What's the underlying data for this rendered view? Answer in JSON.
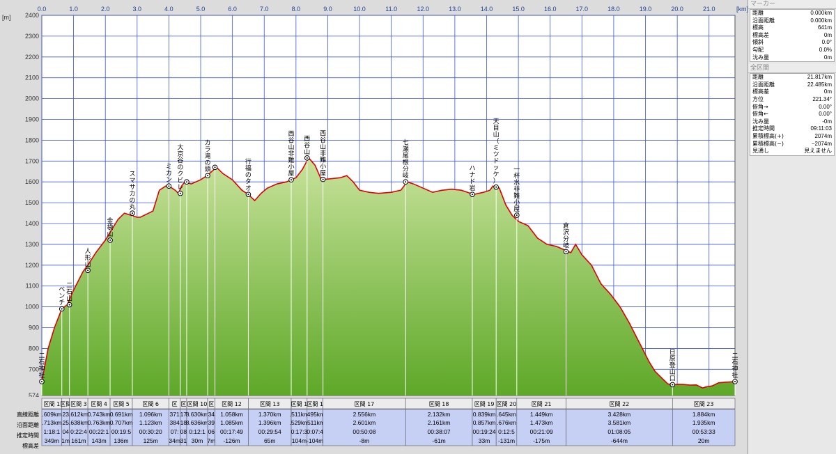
{
  "chart_data": {
    "type": "area",
    "x_unit": "[km]",
    "y_unit": "[m]",
    "xlim": [
      0,
      21.817
    ],
    "ylim": [
      574,
      2400
    ],
    "x_ticks": [
      "0.0",
      "1.0",
      "2.0",
      "3.0",
      "4.0",
      "5.0",
      "6.0",
      "7.0",
      "8.0",
      "9.0",
      "10.0",
      "11.0",
      "12.0",
      "13.0",
      "14.0",
      "15.0",
      "16.0",
      "17.0",
      "18.0",
      "19.0",
      "20.0",
      "21.0"
    ],
    "y_ticks": [
      2400,
      2300,
      2200,
      2100,
      2000,
      1900,
      1800,
      1700,
      1600,
      1500,
      1400,
      1300,
      1200,
      1100,
      1000,
      900,
      800,
      700
    ],
    "y_min_label": "574",
    "profile": {
      "x": [
        0,
        0.2,
        0.4,
        0.63,
        0.8,
        1.0,
        1.3,
        1.45,
        1.7,
        2.0,
        2.2,
        2.4,
        2.6,
        2.8,
        3.0,
        3.1,
        3.5,
        3.7,
        3.9,
        4.0,
        4.2,
        4.3,
        4.4,
        4.5,
        4.7,
        5.0,
        5.2,
        5.5,
        5.7,
        6.0,
        6.3,
        6.5,
        6.7,
        6.9,
        7.1,
        7.4,
        7.7,
        7.85,
        8.0,
        8.2,
        8.4,
        8.6,
        8.8,
        8.9,
        9.1,
        9.4,
        9.6,
        9.8,
        10.0,
        10.3,
        10.6,
        11.0,
        11.3,
        11.5,
        11.7,
        12.0,
        12.3,
        12.6,
        12.9,
        13.2,
        13.5,
        13.6,
        13.9,
        14.1,
        14.2,
        14.4,
        14.5,
        14.6,
        14.8,
        15.0,
        15.3,
        15.6,
        15.9,
        16.2,
        16.5,
        16.65,
        16.8,
        17.0,
        17.3,
        17.6,
        17.9,
        18.2,
        18.5,
        18.7,
        18.9,
        19.1,
        19.3,
        19.5,
        19.7,
        19.85,
        20.0,
        20.2,
        20.4,
        20.6,
        20.8,
        20.9,
        21.1,
        21.3,
        21.5,
        21.817
      ],
      "y": [
        641,
        800,
        900,
        990,
        1010,
        1080,
        1170,
        1200,
        1260,
        1320,
        1370,
        1420,
        1450,
        1440,
        1430,
        1430,
        1460,
        1560,
        1580,
        1580,
        1560,
        1545,
        1580,
        1600,
        1590,
        1610,
        1630,
        1670,
        1640,
        1610,
        1560,
        1540,
        1510,
        1545,
        1570,
        1590,
        1600,
        1610,
        1620,
        1660,
        1715,
        1680,
        1610,
        1612,
        1615,
        1620,
        1630,
        1600,
        1560,
        1550,
        1545,
        1550,
        1560,
        1600,
        1590,
        1570,
        1550,
        1560,
        1565,
        1560,
        1545,
        1540,
        1550,
        1560,
        1580,
        1570,
        1530,
        1490,
        1440,
        1410,
        1390,
        1330,
        1300,
        1290,
        1270,
        1260,
        1300,
        1250,
        1200,
        1110,
        1060,
        1000,
        920,
        860,
        800,
        740,
        690,
        660,
        630,
        626,
        628,
        627,
        624,
        625,
        610,
        615,
        620,
        635,
        638,
        641
      ]
    },
    "waypoints": [
      {
        "label": "二石神社",
        "km": 0.0,
        "elev": 641
      },
      {
        "label": "ベンチ",
        "km": 0.63,
        "elev": 990
      },
      {
        "label": "二石山",
        "km": 0.87,
        "elev": 1010
      },
      {
        "label": "人形山",
        "km": 1.45,
        "elev": 1175
      },
      {
        "label": "金袋山",
        "km": 2.15,
        "elev": 1320
      },
      {
        "label": "スマサカの丸",
        "km": 2.85,
        "elev": 1450
      },
      {
        "label": "ミカン",
        "km": 4.0,
        "elev": 1580
      },
      {
        "label": "大京谷のクビレ",
        "km": 4.36,
        "elev": 1545
      },
      {
        "label": "",
        "km": 4.56,
        "elev": 1600
      },
      {
        "label": "カラ滝の頭",
        "km": 5.22,
        "elev": 1630
      },
      {
        "label": "",
        "km": 5.45,
        "elev": 1670
      },
      {
        "label": "行福のタオ",
        "km": 6.5,
        "elev": 1540
      },
      {
        "label": "西谷山非難小屋",
        "km": 7.85,
        "elev": 1610
      },
      {
        "label": "西谷山",
        "km": 8.35,
        "elev": 1715
      },
      {
        "label": "西谷山非難小屋",
        "km": 8.85,
        "elev": 1612
      },
      {
        "label": "七瀬尾根分岐",
        "km": 11.45,
        "elev": 1600
      },
      {
        "label": "ハナド岩",
        "km": 13.55,
        "elev": 1540
      },
      {
        "label": "天目山（ミツドッケ）",
        "km": 14.3,
        "elev": 1575
      },
      {
        "label": "一杯水非難小屋",
        "km": 14.95,
        "elev": 1440
      },
      {
        "label": "倉沢分岐",
        "km": 16.5,
        "elev": 1265
      },
      {
        "label": "日原登山口",
        "km": 19.85,
        "elev": 626
      },
      {
        "label": "二石神社",
        "km": 21.817,
        "elev": 641
      }
    ],
    "sections": [
      {
        "label": "区間 1",
        "direct": ".609km",
        "surface": ".713km",
        "time": "1:18:1",
        "elev": "349m"
      },
      {
        "label": "区間",
        "direct": "23",
        "surface": "25",
        "time": "04",
        "elev": "1m"
      },
      {
        "label": "区間 3",
        "direct": ".612km",
        "surface": ".638km",
        "time": "0:22:4",
        "elev": "161m"
      },
      {
        "label": "区間 4",
        "direct": "0.743km",
        "surface": "0.763km",
        "time": "00:22:1",
        "elev": "143m"
      },
      {
        "label": "区間 5",
        "direct": "0.691km",
        "surface": "0.707km",
        "time": "00:19:5",
        "elev": "136m"
      },
      {
        "label": "区間 6",
        "direct": "1.096km",
        "surface": "1.123km",
        "time": "00:30:20",
        "elev": "125m"
      },
      {
        "label": "区",
        "direct": "371",
        "surface": "384",
        "time": "07:",
        "elev": "34m"
      },
      {
        "label": "区",
        "direct": "17",
        "surface": "18",
        "time": "08",
        "elev": "31"
      },
      {
        "label": "区間 10",
        "direct": "8.630km",
        "surface": "8.636km",
        "time": "0:12:1",
        "elev": "30m"
      },
      {
        "label": "区",
        "direct": "34",
        "surface": "39",
        "time": "06",
        "elev": "7m"
      },
      {
        "label": "区間 12",
        "direct": "1.058km",
        "surface": "1.085km",
        "time": "00:17:49",
        "elev": "-126m"
      },
      {
        "label": "区間 13",
        "direct": "1.370km",
        "surface": "1.396km",
        "time": "00:29:54",
        "elev": "65m"
      },
      {
        "label": "区間 1",
        "direct": ".511km",
        "surface": ".529km",
        "time": "0:17:3",
        "elev": "104m"
      },
      {
        "label": "区間 1",
        "direct": ".495km",
        "surface": ".511km",
        "time": "0:07:4",
        "elev": "-104m"
      },
      {
        "label": "区間 17",
        "direct": "2.556km",
        "surface": "2.601km",
        "time": "00:50:08",
        "elev": "-8m"
      },
      {
        "label": "区間 18",
        "direct": "2.132km",
        "surface": "2.161km",
        "time": "00:38:07",
        "elev": "-61m"
      },
      {
        "label": "区間 19",
        "direct": "0.839km",
        "surface": "0.857km",
        "time": "00:19:24",
        "elev": "33m"
      },
      {
        "label": "区間 20",
        "direct": ".645km",
        "surface": ".676km",
        "time": "0:12:5",
        "elev": "-131m"
      },
      {
        "label": "区間 21",
        "direct": "1.449km",
        "surface": "1.473km",
        "time": "00:21:09",
        "elev": "-175m"
      },
      {
        "label": "区間 22",
        "direct": "3.428km",
        "surface": "3.581km",
        "time": "01:08:05",
        "elev": "-644m"
      },
      {
        "label": "区間 23",
        "direct": "1.884km",
        "surface": "1.935km",
        "time": "00:53:33",
        "elev": "20m"
      }
    ],
    "row_headers": [
      "直線距離",
      "沿面距離",
      "推定時間",
      "標高差"
    ],
    "colors": {
      "line": "#e00000",
      "fill_top": "#c7e29a",
      "fill_bottom": "#5ea828",
      "grid": "#3a56d8",
      "plot_bg": "#ffffff"
    }
  },
  "marker_panel": {
    "title": "マーカー",
    "rows": [
      {
        "k": "距離",
        "v": "0.000km"
      },
      {
        "k": "沿面距離",
        "v": "0.000km"
      },
      {
        "k": "標高",
        "v": "641m"
      },
      {
        "k": "標高差",
        "v": "0m"
      },
      {
        "k": "傾斜",
        "v": "0.0°"
      },
      {
        "k": "勾配",
        "v": "0.0%"
      },
      {
        "k": "沈み量",
        "v": "0m"
      }
    ]
  },
  "total_panel": {
    "title": "全区間",
    "rows": [
      {
        "k": "距離",
        "v": "21.817km"
      },
      {
        "k": "沿面距離",
        "v": "22.485km"
      },
      {
        "k": "標高差",
        "v": "0m"
      },
      {
        "k": "方位",
        "v": "221.34°"
      },
      {
        "k": "俯角→",
        "v": "0.00°"
      },
      {
        "k": "俯角←",
        "v": "0.00°"
      },
      {
        "k": "沈み量",
        "v": "-0m"
      },
      {
        "k": "推定時間",
        "v": "09:11:03"
      },
      {
        "k": "累積標高(+)",
        "v": "2074m"
      },
      {
        "k": "累積標高(−)",
        "v": "−2074m"
      },
      {
        "k": "見通し",
        "v": "見えません"
      }
    ]
  }
}
